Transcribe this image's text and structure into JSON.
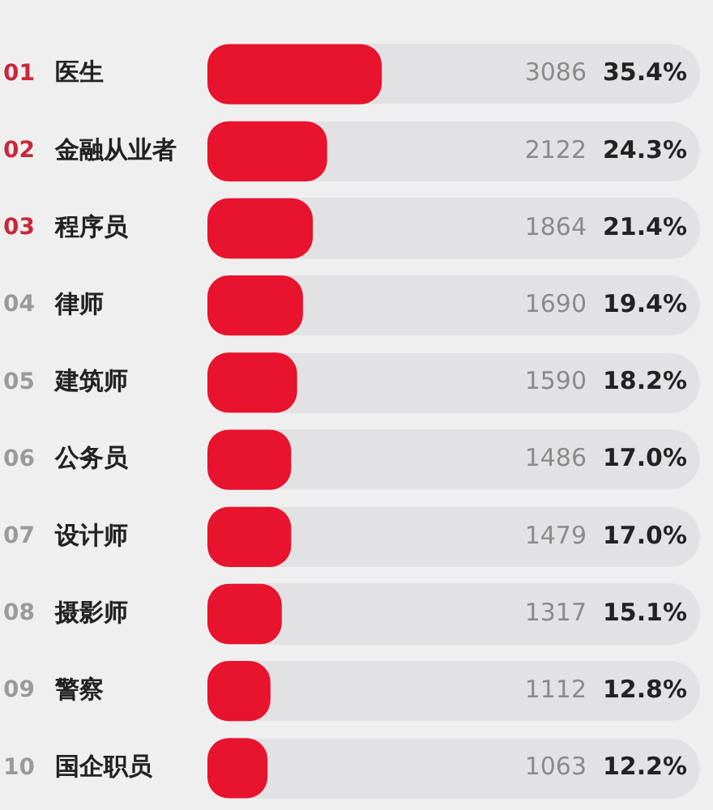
{
  "chart_data": {
    "type": "bar",
    "orientation": "horizontal",
    "categories": [
      "01 医生",
      "02 金融从业者",
      "03 程序员",
      "04 律师",
      "05 建筑师",
      "06 公务员",
      "07 设计师",
      "08 摄影师",
      "09 警察",
      "10 国企职员"
    ],
    "values": [
      35.4,
      24.3,
      21.4,
      19.4,
      18.2,
      17.0,
      17.0,
      15.1,
      12.8,
      12.2
    ],
    "value_labels": [
      "35.4%",
      "24.3%",
      "21.4%",
      "19.4%",
      "18.2%",
      "17.0%",
      "17.0%",
      "15.1%",
      "12.8%",
      "12.2%"
    ],
    "annotations": [
      "3086",
      "2122",
      "1864",
      "1690",
      "1590",
      "1486",
      "1479",
      "1317",
      "1112",
      "1063"
    ],
    "color": "#e8132d",
    "xlim": [
      0,
      100
    ],
    "legend": false
  }
}
